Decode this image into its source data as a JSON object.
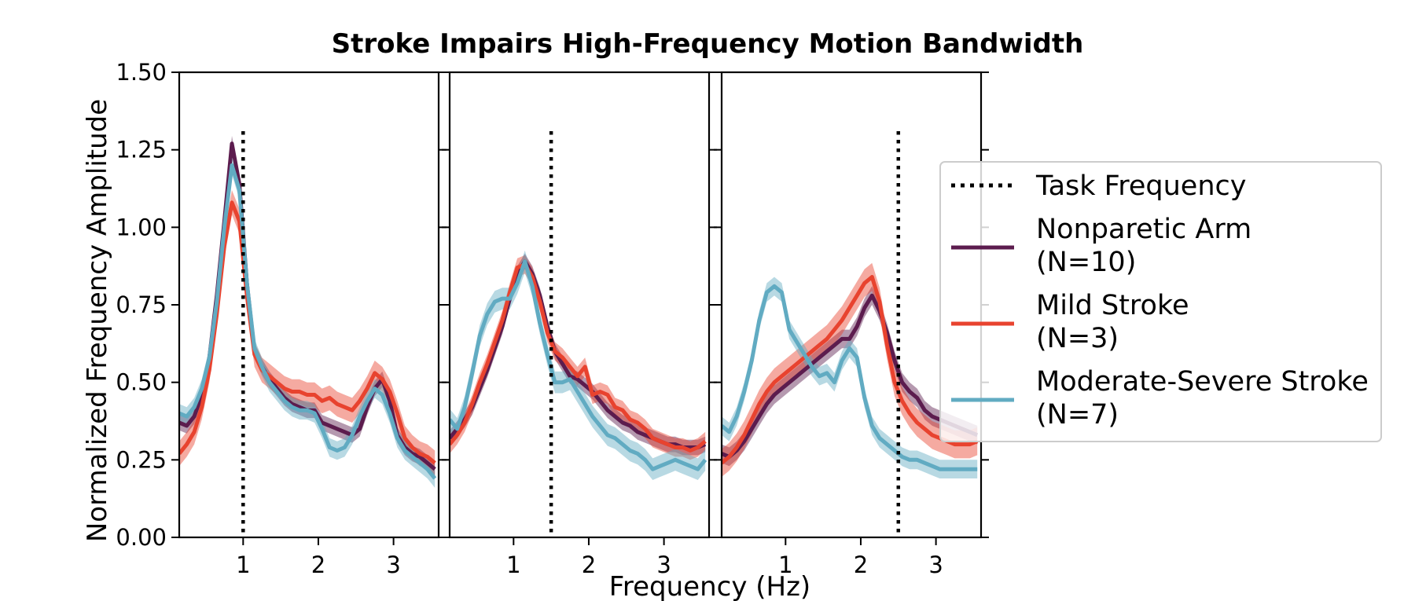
{
  "chart_data": {
    "type": "line",
    "title": "Stroke Impairs High-Frequency Motion Bandwidth",
    "xlabel": "Frequency (Hz)",
    "ylabel": "Normalized Frequency Amplitude",
    "ylim": [
      0,
      1.5
    ],
    "xlim": [
      0.15,
      3.6
    ],
    "yticks": [
      "0.00",
      "0.25",
      "0.50",
      "0.75",
      "1.00",
      "1.25",
      "1.50"
    ],
    "xticks": [
      "1",
      "2",
      "3"
    ],
    "grid": false,
    "legend_position": "right",
    "legend": [
      {
        "label": "Task Frequency",
        "style": "dotted",
        "color": "#000000"
      },
      {
        "label": "Nonparetic Arm",
        "sub": "(N=10)",
        "color": "#5c1c4e"
      },
      {
        "label": "Mild Stroke",
        "sub": "(N=3)",
        "color": "#e8432f"
      },
      {
        "label": "Moderate-Severe Stroke",
        "sub": "(N=7)",
        "color": "#61abc2"
      }
    ],
    "panels": [
      {
        "task_frequency": 1.0,
        "x": [
          0.15,
          0.25,
          0.35,
          0.45,
          0.55,
          0.65,
          0.75,
          0.85,
          0.95,
          1.05,
          1.15,
          1.25,
          1.35,
          1.45,
          1.55,
          1.65,
          1.75,
          1.85,
          1.95,
          2.05,
          2.15,
          2.25,
          2.35,
          2.45,
          2.55,
          2.65,
          2.75,
          2.85,
          2.95,
          3.05,
          3.15,
          3.25,
          3.35,
          3.45,
          3.55
        ],
        "series": [
          {
            "name": "Nonparetic Arm",
            "values": [
              0.37,
              0.36,
              0.39,
              0.46,
              0.58,
              0.78,
              1.02,
              1.27,
              1.14,
              0.82,
              0.6,
              0.55,
              0.51,
              0.48,
              0.45,
              0.43,
              0.42,
              0.41,
              0.41,
              0.37,
              0.36,
              0.35,
              0.34,
              0.33,
              0.35,
              0.42,
              0.48,
              0.51,
              0.44,
              0.33,
              0.29,
              0.27,
              0.26,
              0.24,
              0.22
            ],
            "band": 0.025
          },
          {
            "name": "Mild Stroke",
            "values": [
              0.27,
              0.3,
              0.34,
              0.42,
              0.54,
              0.72,
              0.94,
              1.08,
              1.02,
              0.78,
              0.59,
              0.54,
              0.52,
              0.5,
              0.48,
              0.47,
              0.47,
              0.46,
              0.46,
              0.44,
              0.45,
              0.43,
              0.42,
              0.41,
              0.44,
              0.48,
              0.53,
              0.51,
              0.47,
              0.4,
              0.32,
              0.29,
              0.27,
              0.26,
              0.24
            ],
            "band": 0.04
          },
          {
            "name": "Moderate-Severe Stroke",
            "values": [
              0.4,
              0.39,
              0.42,
              0.48,
              0.58,
              0.76,
              1.0,
              1.2,
              1.12,
              0.82,
              0.61,
              0.55,
              0.5,
              0.47,
              0.44,
              0.42,
              0.41,
              0.41,
              0.4,
              0.35,
              0.29,
              0.28,
              0.29,
              0.33,
              0.39,
              0.44,
              0.48,
              0.46,
              0.4,
              0.32,
              0.28,
              0.26,
              0.24,
              0.22,
              0.19
            ],
            "band": 0.03
          }
        ]
      },
      {
        "task_frequency": 1.5,
        "x": [
          0.15,
          0.25,
          0.35,
          0.45,
          0.55,
          0.65,
          0.75,
          0.85,
          0.95,
          1.05,
          1.15,
          1.25,
          1.35,
          1.45,
          1.55,
          1.65,
          1.75,
          1.85,
          1.95,
          2.05,
          2.15,
          2.25,
          2.35,
          2.45,
          2.55,
          2.65,
          2.75,
          2.85,
          2.95,
          3.05,
          3.15,
          3.25,
          3.35,
          3.45,
          3.55
        ],
        "series": [
          {
            "name": "Nonparetic Arm",
            "values": [
              0.32,
              0.35,
              0.38,
              0.42,
              0.48,
              0.54,
              0.61,
              0.68,
              0.77,
              0.85,
              0.89,
              0.85,
              0.78,
              0.68,
              0.6,
              0.56,
              0.52,
              0.51,
              0.49,
              0.47,
              0.44,
              0.41,
              0.39,
              0.37,
              0.36,
              0.34,
              0.33,
              0.32,
              0.31,
              0.3,
              0.3,
              0.29,
              0.29,
              0.29,
              0.3
            ],
            "band": 0.025
          },
          {
            "name": "Mild Stroke",
            "values": [
              0.3,
              0.33,
              0.37,
              0.43,
              0.5,
              0.56,
              0.63,
              0.7,
              0.79,
              0.87,
              0.88,
              0.84,
              0.76,
              0.66,
              0.6,
              0.58,
              0.55,
              0.52,
              0.55,
              0.46,
              0.47,
              0.46,
              0.42,
              0.41,
              0.38,
              0.37,
              0.35,
              0.32,
              0.31,
              0.3,
              0.29,
              0.29,
              0.28,
              0.29,
              0.31
            ],
            "band": 0.03
          },
          {
            "name": "Moderate-Severe Stroke",
            "values": [
              0.38,
              0.35,
              0.42,
              0.53,
              0.65,
              0.72,
              0.76,
              0.77,
              0.77,
              0.82,
              0.89,
              0.81,
              0.69,
              0.59,
              0.5,
              0.5,
              0.51,
              0.47,
              0.43,
              0.39,
              0.36,
              0.33,
              0.32,
              0.3,
              0.28,
              0.27,
              0.25,
              0.22,
              0.23,
              0.24,
              0.25,
              0.24,
              0.23,
              0.22,
              0.25
            ],
            "band": 0.035
          }
        ]
      },
      {
        "task_frequency": 2.5,
        "x": [
          0.15,
          0.25,
          0.35,
          0.45,
          0.55,
          0.65,
          0.75,
          0.85,
          0.95,
          1.05,
          1.15,
          1.25,
          1.35,
          1.45,
          1.55,
          1.65,
          1.75,
          1.85,
          1.95,
          2.05,
          2.15,
          2.25,
          2.35,
          2.45,
          2.55,
          2.65,
          2.75,
          2.85,
          2.95,
          3.05,
          3.15,
          3.25,
          3.35,
          3.45,
          3.55
        ],
        "series": [
          {
            "name": "Nonparetic Arm",
            "values": [
              0.27,
              0.26,
              0.28,
              0.31,
              0.35,
              0.39,
              0.43,
              0.46,
              0.48,
              0.5,
              0.52,
              0.54,
              0.56,
              0.58,
              0.6,
              0.62,
              0.64,
              0.64,
              0.68,
              0.74,
              0.78,
              0.73,
              0.66,
              0.57,
              0.5,
              0.47,
              0.45,
              0.41,
              0.39,
              0.38,
              0.37,
              0.36,
              0.35,
              0.34,
              0.33
            ],
            "band": 0.03
          },
          {
            "name": "Mild Stroke",
            "values": [
              0.24,
              0.26,
              0.29,
              0.33,
              0.38,
              0.43,
              0.47,
              0.5,
              0.52,
              0.54,
              0.56,
              0.58,
              0.6,
              0.62,
              0.64,
              0.67,
              0.7,
              0.74,
              0.78,
              0.82,
              0.84,
              0.76,
              0.62,
              0.5,
              0.44,
              0.4,
              0.37,
              0.35,
              0.33,
              0.32,
              0.31,
              0.3,
              0.3,
              0.3,
              0.31
            ],
            "band": 0.045
          },
          {
            "name": "Moderate-Severe Stroke",
            "values": [
              0.36,
              0.34,
              0.39,
              0.47,
              0.57,
              0.7,
              0.79,
              0.81,
              0.79,
              0.67,
              0.63,
              0.59,
              0.55,
              0.52,
              0.53,
              0.5,
              0.57,
              0.61,
              0.58,
              0.45,
              0.36,
              0.32,
              0.3,
              0.28,
              0.26,
              0.25,
              0.25,
              0.24,
              0.23,
              0.22,
              0.22,
              0.22,
              0.22,
              0.22,
              0.22
            ],
            "band": 0.03
          }
        ]
      }
    ]
  }
}
